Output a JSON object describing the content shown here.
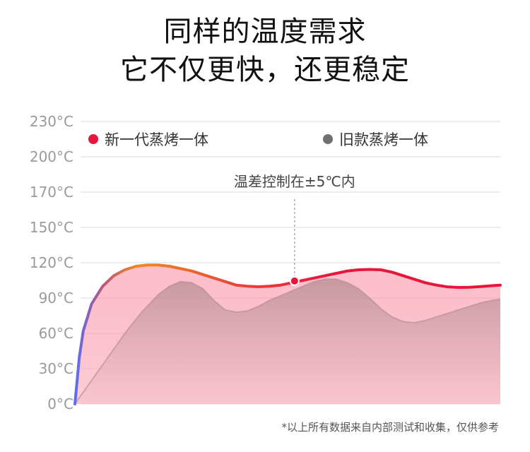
{
  "headline": {
    "line1": "同样的温度需求",
    "line2": "它不仅更快，还更稳定"
  },
  "chart_data": {
    "type": "area",
    "yticks": [
      "230°C",
      "200°C",
      "170°C",
      "150°C",
      "120°C",
      "90°C",
      "60°C",
      "30°C",
      "0°C"
    ],
    "grid": true,
    "legend_position": "top",
    "series": [
      {
        "name": "新一代蒸烤一体",
        "color": "#e8153a",
        "points": [
          [
            0,
            0
          ],
          [
            0.8,
            40
          ],
          [
            1.5,
            62
          ],
          [
            3,
            85
          ],
          [
            5,
            100
          ],
          [
            7,
            109
          ],
          [
            9,
            114
          ],
          [
            11,
            117
          ],
          [
            13,
            118
          ],
          [
            15,
            118
          ],
          [
            17,
            117
          ],
          [
            19,
            115
          ],
          [
            21,
            113
          ],
          [
            23,
            110
          ],
          [
            25,
            107
          ],
          [
            27,
            104
          ],
          [
            29,
            101
          ],
          [
            31,
            100
          ],
          [
            33,
            99.6
          ],
          [
            35,
            100
          ],
          [
            37,
            101
          ],
          [
            39,
            103
          ],
          [
            41,
            105
          ],
          [
            43,
            107
          ],
          [
            45,
            109
          ],
          [
            47,
            111
          ],
          [
            49,
            113
          ],
          [
            51,
            114
          ],
          [
            53,
            114.3
          ],
          [
            55,
            114
          ],
          [
            57,
            112
          ],
          [
            59,
            109
          ],
          [
            61,
            106
          ],
          [
            63,
            103
          ],
          [
            65,
            101
          ],
          [
            67,
            99.5
          ],
          [
            69,
            99
          ],
          [
            71,
            99.2
          ],
          [
            73,
            99.8
          ],
          [
            75,
            100.5
          ],
          [
            76.5,
            101
          ]
        ]
      },
      {
        "name": "旧款蒸烤一体",
        "color": "#707070",
        "points": [
          [
            0,
            0
          ],
          [
            3,
            20
          ],
          [
            6,
            40
          ],
          [
            9,
            60
          ],
          [
            12,
            78
          ],
          [
            15,
            93
          ],
          [
            17,
            100
          ],
          [
            19,
            104
          ],
          [
            21,
            103
          ],
          [
            23,
            98
          ],
          [
            25,
            88
          ],
          [
            27,
            80
          ],
          [
            29,
            78
          ],
          [
            31,
            79
          ],
          [
            33,
            83
          ],
          [
            35,
            88
          ],
          [
            37,
            92
          ],
          [
            39,
            96
          ],
          [
            41,
            100
          ],
          [
            43,
            104
          ],
          [
            45,
            106
          ],
          [
            47,
            106
          ],
          [
            49,
            103
          ],
          [
            51,
            98
          ],
          [
            53,
            90
          ],
          [
            55,
            81
          ],
          [
            57,
            74
          ],
          [
            59,
            70
          ],
          [
            61,
            69
          ],
          [
            63,
            71
          ],
          [
            65,
            74
          ],
          [
            67,
            77
          ],
          [
            69,
            80
          ],
          [
            71,
            83
          ],
          [
            73,
            86
          ],
          [
            75,
            88
          ],
          [
            76.5,
            89
          ]
        ]
      }
    ],
    "annotation": {
      "text": "温差控制在±5℃内",
      "x": 39.5,
      "y": 104.5
    }
  },
  "footnote": "*以上所有数据来自内部测试和收集，仅供参考"
}
